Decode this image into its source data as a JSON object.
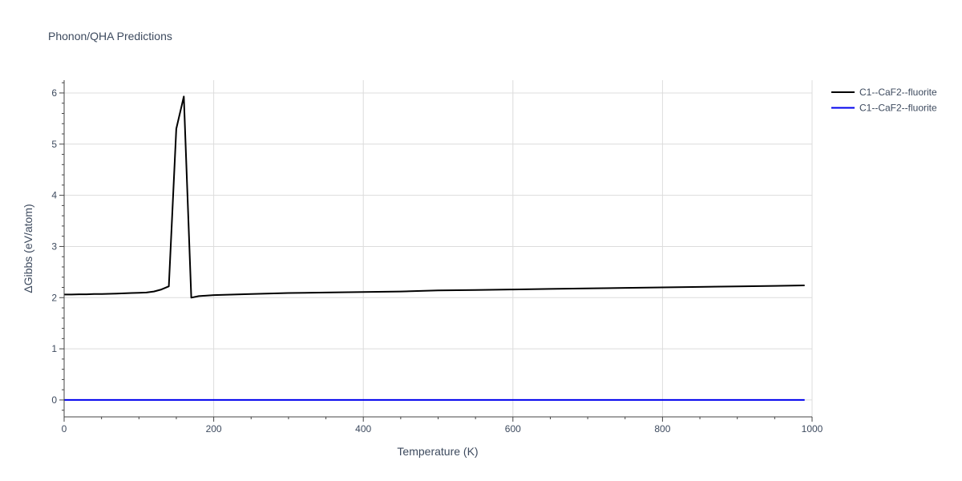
{
  "chart_data": {
    "type": "line",
    "title": "Phonon/QHA Predictions",
    "xlabel": "Temperature (K)",
    "ylabel": "ΔGibbs (eV/atom)",
    "xlim": [
      0,
      1000
    ],
    "ylim": [
      -0.33,
      6.25
    ],
    "xticks": [
      0,
      200,
      400,
      600,
      800,
      1000
    ],
    "yticks": [
      0,
      1,
      2,
      3,
      4,
      5,
      6
    ],
    "grid": true,
    "legend_position": "top-right",
    "series": [
      {
        "name": "C1--CaF2--fluorite",
        "color": "#000000",
        "x": [
          0,
          10,
          20,
          30,
          40,
          50,
          60,
          70,
          80,
          90,
          100,
          110,
          120,
          130,
          140,
          150,
          160,
          170,
          180,
          200,
          250,
          300,
          350,
          400,
          450,
          500,
          550,
          600,
          650,
          700,
          750,
          800,
          850,
          900,
          950,
          990
        ],
        "y": [
          2.06,
          2.06,
          2.065,
          2.065,
          2.07,
          2.07,
          2.075,
          2.08,
          2.085,
          2.09,
          2.095,
          2.1,
          2.12,
          2.16,
          2.22,
          5.3,
          5.93,
          2.0,
          2.03,
          2.05,
          2.07,
          2.09,
          2.1,
          2.11,
          2.12,
          2.14,
          2.15,
          2.16,
          2.17,
          2.18,
          2.19,
          2.2,
          2.21,
          2.22,
          2.23,
          2.24
        ]
      },
      {
        "name": "C1--CaF2--fluorite",
        "color": "#0000ee",
        "x": [
          0,
          990
        ],
        "y": [
          0,
          0
        ]
      }
    ]
  }
}
